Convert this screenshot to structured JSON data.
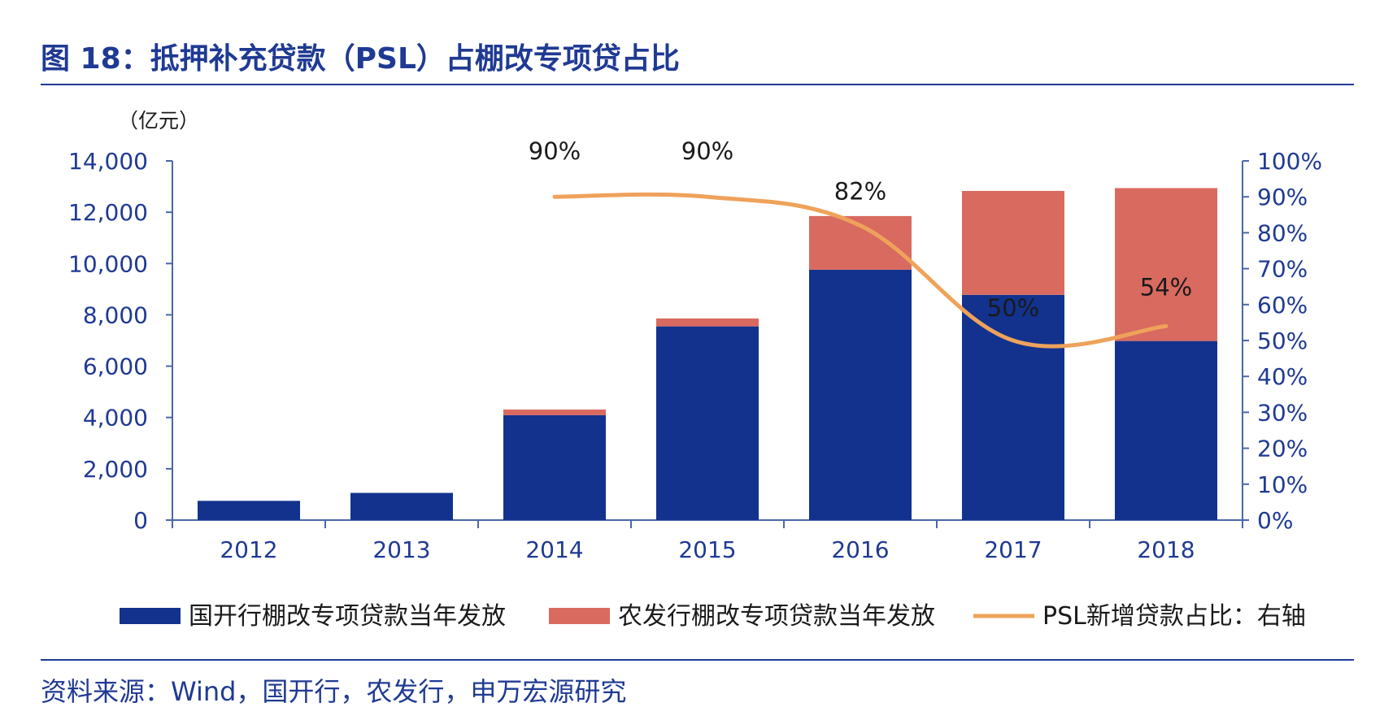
{
  "header": {
    "title": "图 18：抵押补充贷款（PSL）占棚改专项贷占比"
  },
  "source": "资料来源：Wind，国开行，农发行，申万宏源研究",
  "colors": {
    "title": "#1f3a93",
    "rule": "#1f3a93",
    "axis": "#4a67a6",
    "cdb": "#12328e",
    "adbc": "#d96a60",
    "line": "#eea25a",
    "text": "#1a1a1a"
  },
  "chart_data": {
    "type": "bar",
    "stacked": true,
    "unit_label": "（亿元）",
    "categories": [
      "2012",
      "2013",
      "2014",
      "2015",
      "2016",
      "2017",
      "2018"
    ],
    "series": [
      {
        "name": "国开行棚改专项贷款当年发放",
        "values": [
          750,
          1060,
          4090,
          7550,
          9760,
          8780,
          6980
        ]
      },
      {
        "name": "农发行棚改专项贷款当年发放",
        "values": [
          0,
          0,
          220,
          310,
          2090,
          4050,
          5960
        ]
      }
    ],
    "line_series": {
      "name": "PSL新增贷款占比：右轴",
      "axis": "right",
      "start_index": 2,
      "values": [
        90,
        90,
        82,
        50,
        54
      ],
      "labels": [
        "90%",
        "90%",
        "82%",
        "50%",
        "54%"
      ]
    },
    "left_axis": {
      "min": 0,
      "max": 14000,
      "ticks": [
        0,
        2000,
        4000,
        6000,
        8000,
        10000,
        12000,
        14000
      ],
      "tick_labels": [
        "0",
        "2,000",
        "4,000",
        "6,000",
        "8,000",
        "10,000",
        "12,000",
        "14,000"
      ]
    },
    "right_axis": {
      "min": 0,
      "max": 100,
      "ticks": [
        0,
        10,
        20,
        30,
        40,
        50,
        60,
        70,
        80,
        90,
        100
      ],
      "tick_labels": [
        "0%",
        "10%",
        "20%",
        "30%",
        "40%",
        "50%",
        "60%",
        "70%",
        "80%",
        "90%",
        "100%"
      ]
    },
    "legend": {
      "position": "bottom",
      "labels": [
        "国开行棚改专项贷款当年发放",
        "农发行棚改专项贷款当年发放",
        "PSL新增贷款占比：右轴"
      ]
    }
  }
}
